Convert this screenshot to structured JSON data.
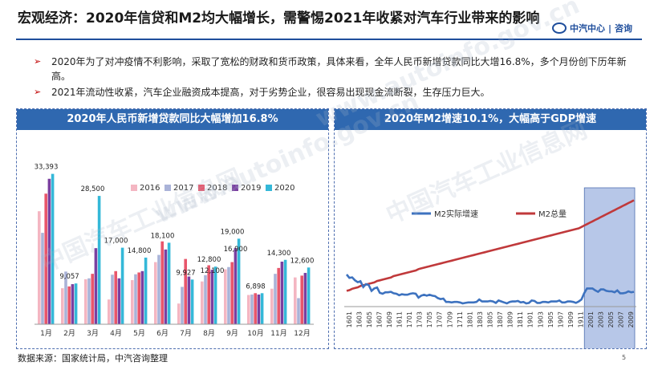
{
  "title": "宏观经济：2020年信贷和M2均大幅增长，需警惕2021年收紧对汽车行业带来的影响",
  "brand": {
    "name": "中汽中心",
    "sep": "|",
    "sub": "咨询"
  },
  "bullets": [
    "2020年为了对冲疫情不利影响，采取了宽松的财政和货币政策，具体来看，全年人民币新增贷款同比大增16.8%，多个月份创下历年新高。",
    "2021年流动性收紧，汽车企业融资成本提高，对于劣势企业，很容易出现现金流断裂，生存压力巨大。"
  ],
  "bullet_marker": "➢",
  "colors": {
    "accent": "#2f68b0",
    "c2016": "#f4b6c2",
    "c2017": "#aab3d8",
    "c2018": "#e8566b",
    "c2019": "#7a3fa0",
    "c2020": "#34b8d8",
    "m2growth": "#3d72bf",
    "m2total": "#c0393b",
    "highlight": "#9fb4e0"
  },
  "watermark": [
    "中国汽车工业信息网",
    "www.autoinfo.gov.cn"
  ],
  "source": "数据来源：国家统计局，中汽咨询整理",
  "page": "5",
  "chart_data": [
    {
      "type": "bar",
      "title": "2020年人民币新增贷款同比大幅增加16.8%",
      "categories": [
        "1月",
        "2月",
        "3月",
        "4月",
        "5月",
        "6月",
        "7月",
        "8月",
        "9月",
        "10月",
        "11月",
        "12月"
      ],
      "series": [
        {
          "name": "2016",
          "color": "#f4b6c2",
          "values": [
            25100,
            8000,
            10000,
            5500,
            9800,
            13800,
            4600,
            9500,
            12200,
            6500,
            7900,
            10400
          ]
        },
        {
          "name": "2017",
          "color": "#aab3d8",
          "values": [
            20300,
            11700,
            10200,
            11000,
            11100,
            15400,
            8300,
            10900,
            12700,
            6600,
            11200,
            5800
          ]
        },
        {
          "name": "2018",
          "color": "#e8566b",
          "values": [
            29000,
            8400,
            11200,
            11800,
            11500,
            18400,
            14500,
            13100,
            13800,
            6900,
            12500,
            10800
          ]
        },
        {
          "name": "2019",
          "color": "#7a3fa0",
          "values": [
            32300,
            8900,
            16900,
            10200,
            11800,
            16600,
            10600,
            12100,
            16900,
            6600,
            13900,
            11400
          ]
        },
        {
          "name": "2020",
          "color": "#34b8d8",
          "values": [
            33393,
            9057,
            28500,
            17000,
            14800,
            18100,
            9927,
            12800,
            19000,
            6898,
            14300,
            12600
          ]
        }
      ],
      "labels": [
        {
          "category": "1月",
          "text": "33,393"
        },
        {
          "category": "2月",
          "text": "9,057"
        },
        {
          "category": "3月",
          "text": "28,500"
        },
        {
          "category": "4月",
          "text": "17,000"
        },
        {
          "category": "5月",
          "text": "14,800"
        },
        {
          "category": "6月",
          "text": "18,100"
        },
        {
          "category": "7月",
          "text": "9,927"
        },
        {
          "category": "8月",
          "text": "12,800"
        },
        {
          "category": "8月",
          "text": "12,100"
        },
        {
          "category": "9月",
          "text": "19,000"
        },
        {
          "category": "9月",
          "text": "16,900"
        },
        {
          "category": "10月",
          "text": "6,898"
        },
        {
          "category": "11月",
          "text": "14,300"
        },
        {
          "category": "12月",
          "text": "12,600"
        }
      ],
      "ylim": [
        0,
        36000
      ],
      "legend": "top",
      "grid": false
    },
    {
      "type": "line",
      "title": "2020年M2增速10.1%，大幅高于GDP增速",
      "x_ticks": [
        "1601",
        "1603",
        "1605",
        "1607",
        "1609",
        "1611",
        "1701",
        "1703",
        "1705",
        "1707",
        "1709",
        "1711",
        "1801",
        "1803",
        "1805",
        "1807",
        "1809",
        "1811",
        "1901",
        "1903",
        "1905",
        "1907",
        "1909",
        "1911",
        "2001",
        "2003",
        "2005",
        "2007",
        "2009"
      ],
      "series": [
        {
          "name": "M2实际增速",
          "color": "#3d72bf",
          "values": [
            14.0,
            13.3,
            13.4,
            12.8,
            12.4,
            12.6,
            11.4,
            12.0,
            11.8,
            10.6,
            11.1,
            11.3,
            10.2,
            10.0,
            10.3,
            10.3,
            10.4,
            10.1,
            10.0,
            9.7,
            9.9,
            9.8,
            9.8,
            10.0,
            10.1,
            10.0,
            9.2,
            9.6,
            9.8,
            9.6,
            9.8,
            9.6,
            9.5,
            9.1,
            8.9,
            9.0,
            8.3,
            8.3,
            8.2,
            8.3,
            8.3,
            8.2,
            8.0,
            8.1,
            8.2,
            8.2,
            8.2,
            8.3,
            8.8,
            8.4,
            8.4,
            8.4,
            8.5,
            8.4,
            8.1,
            8.6,
            8.4,
            8.2,
            8.0,
            8.3,
            8.4,
            8.4,
            8.5,
            8.2,
            8.3,
            8.0,
            8.1,
            8.6,
            8.5,
            8.1,
            8.1,
            8.3,
            8.3,
            8.2,
            8.4,
            8.4,
            8.4,
            8.6,
            8.2,
            8.2,
            8.4,
            8.4,
            8.3,
            8.1,
            8.4,
            8.8,
            10.1,
            11.1,
            11.1,
            11.1,
            10.7,
            10.4,
            10.9,
            10.9,
            10.6,
            10.5,
            10.5,
            10.3,
            10.7,
            10.1,
            10.1,
            10.2,
            10.5,
            10.3,
            10.4
          ]
        },
        {
          "name": "M2总量",
          "color": "#c0393b",
          "values": [
            141,
            142,
            144,
            145,
            146,
            148,
            149,
            150,
            151,
            152,
            153,
            155,
            156,
            157,
            158,
            159,
            160,
            162,
            163,
            164,
            165,
            166,
            167,
            168,
            169,
            170,
            172,
            173,
            174,
            175,
            176,
            177,
            178,
            179,
            180,
            181,
            182,
            183,
            184,
            185,
            186,
            187,
            188,
            189,
            190,
            191,
            192,
            193,
            194,
            195,
            196,
            197,
            198,
            199,
            200,
            201,
            202,
            203,
            204,
            205,
            206,
            207,
            208,
            209,
            210,
            211,
            212,
            213,
            214,
            215,
            216,
            217,
            218,
            219,
            220,
            221,
            222,
            223,
            224,
            225,
            226,
            227,
            228,
            229,
            230,
            232,
            234,
            236,
            238,
            240,
            242,
            244,
            246,
            248,
            250,
            252,
            254,
            256,
            258,
            260,
            262,
            264,
            266,
            268,
            270
          ]
        }
      ],
      "legend": "top",
      "highlight_from": "2001",
      "grid": false
    }
  ]
}
